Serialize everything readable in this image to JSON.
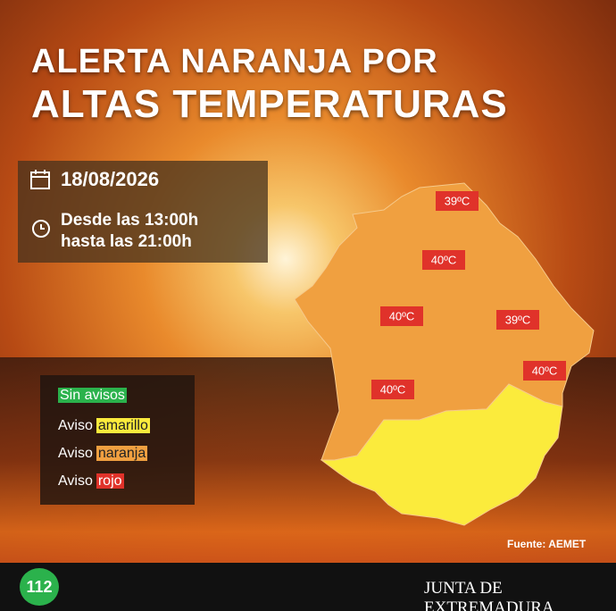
{
  "header": {
    "title_line1": "ALERTA NARANJA POR",
    "title_line2": "ALTAS TEMPERATURAS"
  },
  "info": {
    "date": "18/08/2026",
    "time_line1": "Desde las 13:00h",
    "time_line2": "hasta las 21:00h"
  },
  "legend": {
    "none": "Sin avisos",
    "items": [
      {
        "prefix": "Aviso",
        "level": "amarillo"
      },
      {
        "prefix": "Aviso",
        "level": "naranja"
      },
      {
        "prefix": "Aviso",
        "level": "rojo"
      }
    ]
  },
  "map": {
    "zones": [
      {
        "label": "39ºC"
      },
      {
        "label": "40ºC"
      },
      {
        "label": "40ºC"
      },
      {
        "label": "39ºC"
      },
      {
        "label": "40ºC"
      },
      {
        "label": "40ºC"
      }
    ]
  },
  "source": "Fuente: AEMET",
  "footer": {
    "logo": "112",
    "org": "JUNTA DE EXTREMADURA"
  }
}
